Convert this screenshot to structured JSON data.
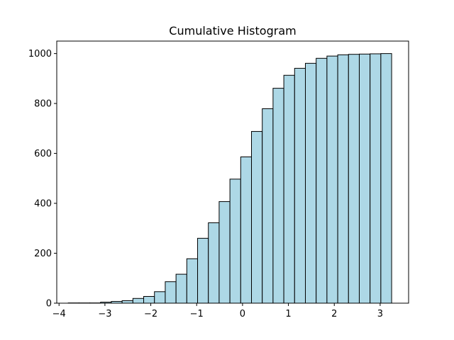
{
  "chart_data": {
    "type": "bar",
    "title": "Cumulative Histogram",
    "xlabel": "",
    "ylabel": "",
    "xlim": [
      -4.05,
      3.62
    ],
    "ylim": [
      0,
      1050
    ],
    "x_ticks": [
      -4,
      -3,
      -2,
      -1,
      0,
      1,
      2,
      3
    ],
    "x_tick_labels": [
      "−4",
      "−3",
      "−2",
      "−1",
      "0",
      "1",
      "2",
      "3"
    ],
    "y_ticks": [
      0,
      200,
      400,
      600,
      800,
      1000
    ],
    "y_tick_labels": [
      "0",
      "200",
      "400",
      "600",
      "800",
      "1000"
    ],
    "bin_edges": [
      -3.8,
      -3.565,
      -3.33,
      -3.095,
      -2.86,
      -2.625,
      -2.39,
      -2.155,
      -1.92,
      -1.685,
      -1.45,
      -1.215,
      -0.98,
      -0.745,
      -0.51,
      -0.275,
      -0.04,
      0.195,
      0.43,
      0.665,
      0.9,
      1.135,
      1.37,
      1.605,
      1.84,
      2.075,
      2.31,
      2.545,
      2.78,
      3.015,
      3.25
    ],
    "values": [
      1,
      1,
      1,
      4,
      7,
      10,
      19,
      27,
      46,
      86,
      116,
      178,
      260,
      322,
      407,
      497,
      586,
      688,
      779,
      861,
      913,
      941,
      961,
      981,
      990,
      995,
      997,
      998,
      999,
      1000
    ],
    "bar_color": "#add8e6",
    "edge_color": "#000000",
    "grid": false
  }
}
